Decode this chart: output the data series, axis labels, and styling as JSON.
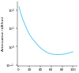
{
  "title": "",
  "ylabel": "Attenuation (dB/km)",
  "xlabel": "",
  "x_ticks": [
    0,
    20,
    40,
    60,
    80,
    100
  ],
  "x_tick_labels": [
    "0",
    "20",
    "40",
    "60",
    "80",
    "100"
  ],
  "xlim": [
    -2,
    108
  ],
  "ylim_log": [
    0.09,
    300
  ],
  "yticks": [
    0.1,
    1,
    10,
    100
  ],
  "ytick_labels": [
    "10⁻¹",
    "10⁰",
    "10¹",
    "10²"
  ],
  "curve_color": "#55ccee",
  "curve_x": [
    1,
    3,
    5,
    8,
    12,
    16,
    20,
    25,
    30,
    35,
    40,
    45,
    50,
    55,
    60,
    65,
    70,
    75,
    80,
    85,
    90,
    95,
    100
  ],
  "curve_y": [
    160,
    95,
    58,
    32,
    16,
    8.5,
    4.8,
    2.9,
    1.9,
    1.25,
    0.88,
    0.67,
    0.53,
    0.45,
    0.4,
    0.38,
    0.37,
    0.37,
    0.38,
    0.4,
    0.43,
    0.47,
    0.53
  ],
  "background_color": "#ffffff",
  "label_fontsize": 3.2,
  "tick_fontsize": 3.0,
  "linewidth": 0.7
}
